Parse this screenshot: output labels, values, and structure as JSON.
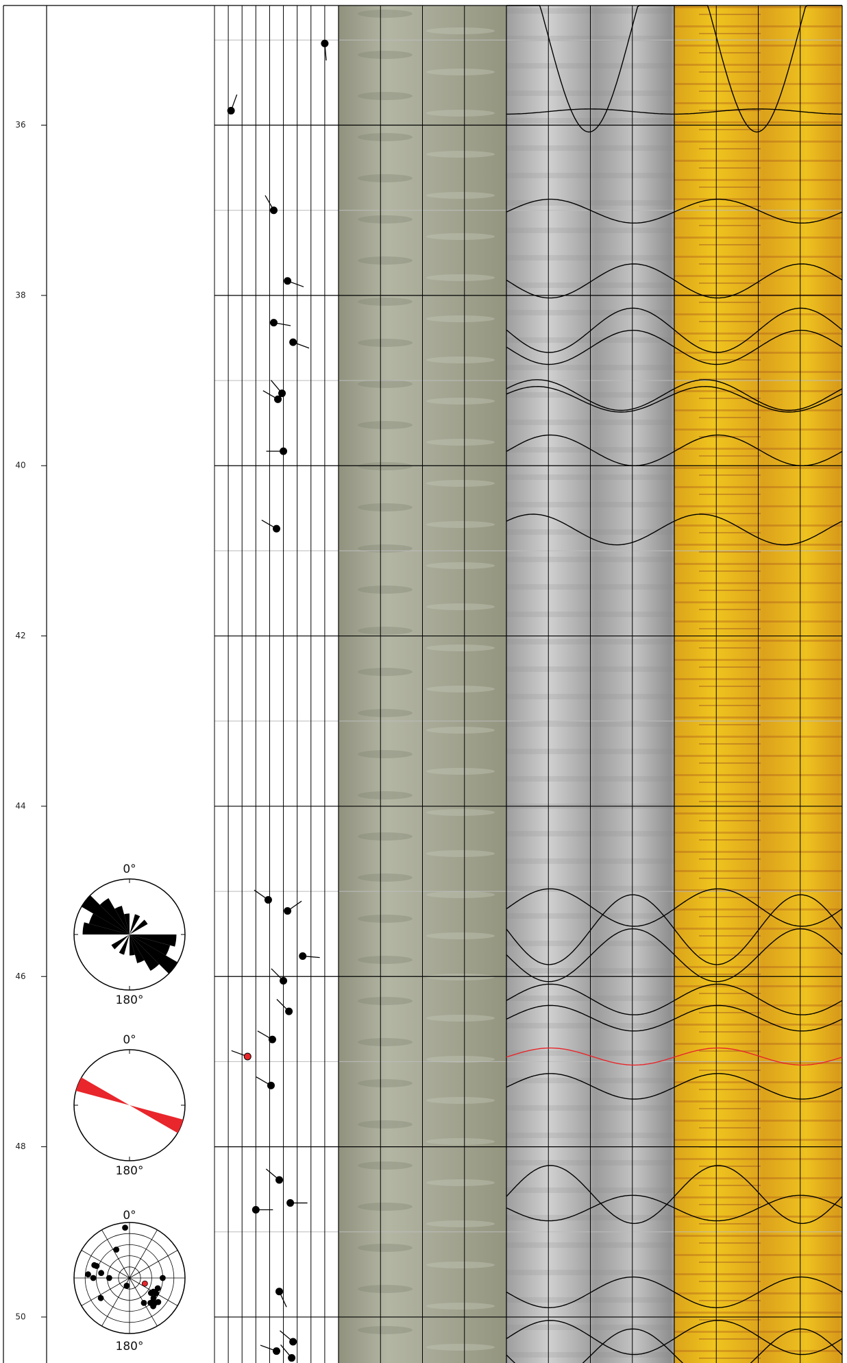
{
  "depth_track": {
    "ylim": [
      34.53,
      50.54
    ],
    "yticks": [
      36,
      38,
      40,
      42,
      44,
      46,
      48,
      50
    ]
  },
  "tadpoles": {
    "xlim": [
      0,
      90
    ],
    "xticks": [
      0,
      10,
      20,
      30,
      40,
      50,
      60,
      70,
      80,
      90
    ],
    "depth": [
      35.04,
      35.83,
      37.0,
      37.83,
      38.32,
      38.55,
      39.15,
      39.22,
      39.83,
      40.74,
      45.1,
      45.23,
      45.76,
      46.05,
      46.41,
      46.74,
      46.94,
      47.28,
      48.39,
      48.66,
      48.74,
      49.7,
      50.29,
      50.4,
      50.48
    ],
    "dip": [
      80,
      12,
      43,
      53,
      43,
      57,
      49,
      46,
      50,
      45,
      39,
      53,
      64,
      50,
      54,
      42,
      24,
      41,
      47,
      55,
      30,
      47,
      57,
      45,
      56
    ],
    "azimuth": [
      175,
      20,
      330,
      110,
      100,
      110,
      320,
      300,
      270,
      300,
      305,
      55,
      95,
      315,
      315,
      300,
      290,
      300,
      310,
      90,
      90,
      155,
      310,
      290,
      320
    ],
    "colors": [
      "#000",
      "#000",
      "#000",
      "#000",
      "#000",
      "#000",
      "#000",
      "#000",
      "#000",
      "#000",
      "#000",
      "#000",
      "#000",
      "#000",
      "#000",
      "#000",
      "#e8262b",
      "#000",
      "#000",
      "#000",
      "#000",
      "#000",
      "#000",
      "#000",
      "#000"
    ]
  },
  "sinusoids": {
    "depth": [
      34.9,
      35.84,
      37.01,
      37.83,
      38.41,
      38.61,
      39.17,
      39.22,
      39.82,
      40.75,
      45.19,
      45.45,
      45.75,
      46.27,
      46.49,
      46.94,
      47.29,
      48.56,
      48.72,
      49.71,
      50.24,
      50.45
    ],
    "amplitude": [
      1.18,
      0.03,
      0.14,
      0.2,
      0.26,
      0.2,
      0.18,
      0.15,
      0.18,
      0.18,
      0.22,
      0.41,
      0.31,
      0.18,
      0.15,
      0.1,
      0.15,
      0.34,
      0.15,
      0.18,
      0.2,
      0.31
    ],
    "azimuth": [
      177,
      0,
      274,
      93,
      91,
      91,
      246,
      246,
      274,
      237,
      274,
      91,
      91,
      274,
      274,
      274,
      274,
      274,
      91,
      91,
      274,
      91
    ],
    "colors": [
      "#000",
      "#000",
      "#000",
      "#000",
      "#000",
      "#000",
      "#000",
      "#000",
      "#000",
      "#000",
      "#000",
      "#000",
      "#000",
      "#000",
      "#000",
      "#e8262b",
      "#000",
      "#000",
      "#000",
      "#000",
      "#000",
      "#000"
    ]
  },
  "rose_diagrams": [
    {
      "north_label": "0°",
      "south_label": "180°"
    },
    {
      "north_label": "0°",
      "south_label": "180°"
    },
    {
      "north_label": "0°",
      "south_label": "180°"
    }
  ]
}
